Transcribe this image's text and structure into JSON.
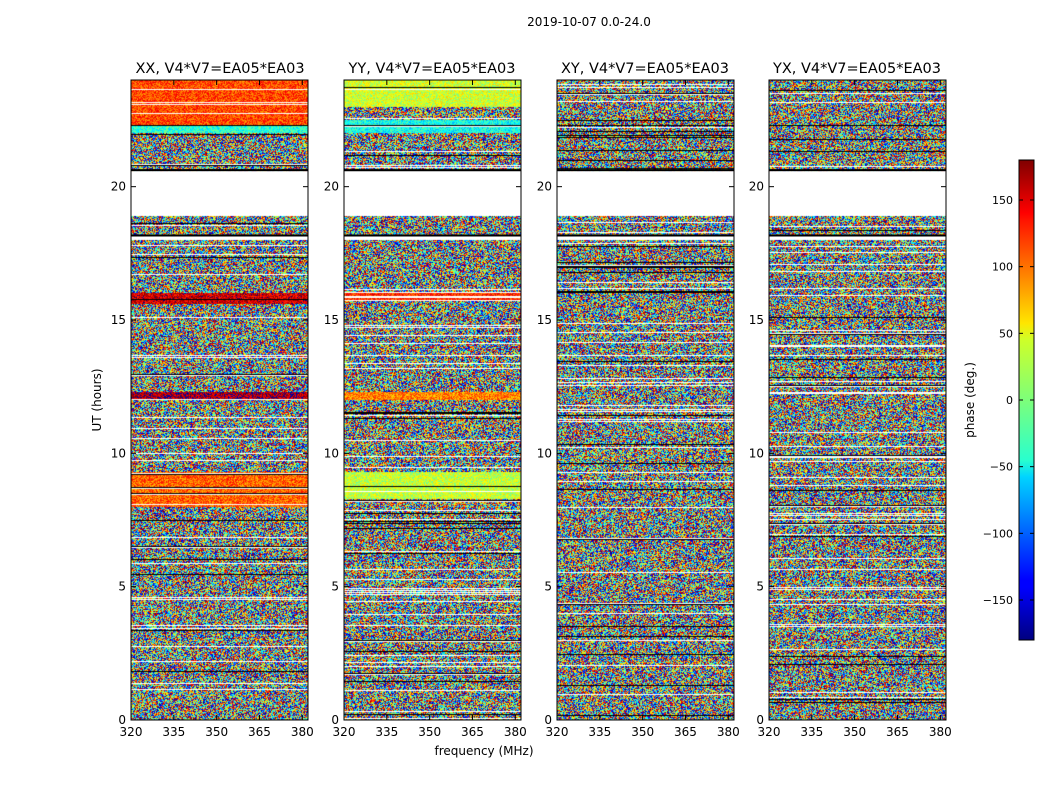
{
  "figure_title": "2019-10-07 0.0-24.0",
  "colors": {
    "frame": "#000000",
    "gap": "#ffffff",
    "flag_line": "#000000"
  },
  "chart_data": [
    {
      "type": "heatmap",
      "title": "XX, V4*V7=EA05*EA03",
      "polarization": "XX",
      "xlabel": "frequency (MHz)",
      "ylabel": "UT (hours)",
      "xlim": [
        320,
        382
      ],
      "ylim": [
        0,
        24
      ],
      "xticks": [
        "320",
        "335",
        "350",
        "365",
        "380"
      ],
      "yticks": [
        "0",
        "5",
        "10",
        "15",
        "20"
      ],
      "coherent_bands_deg": [
        {
          "from": 22.3,
          "to": 24.0,
          "phase": 110
        },
        {
          "from": 22.0,
          "to": 22.3,
          "phase": -30
        },
        {
          "from": 15.6,
          "to": 16.0,
          "phase": 150
        },
        {
          "from": 12.0,
          "to": 12.3,
          "phase": 165
        },
        {
          "from": 8.0,
          "to": 9.3,
          "phase": 100
        }
      ]
    },
    {
      "type": "heatmap",
      "title": "YY, V4*V7=EA05*EA03",
      "polarization": "YY",
      "xlabel": "frequency (MHz)",
      "ylabel": "",
      "xlim": [
        320,
        382
      ],
      "ylim": [
        0,
        24
      ],
      "xticks": [
        "320",
        "335",
        "350",
        "365",
        "380"
      ],
      "yticks": [
        "0",
        "5",
        "10",
        "15",
        "20"
      ],
      "coherent_bands_deg": [
        {
          "from": 23.0,
          "to": 24.0,
          "phase": 30
        },
        {
          "from": 22.0,
          "to": 22.5,
          "phase": -40
        },
        {
          "from": 15.7,
          "to": 16.0,
          "phase": 120
        },
        {
          "from": 12.0,
          "to": 12.3,
          "phase": 90
        },
        {
          "from": 8.3,
          "to": 9.3,
          "phase": 25
        }
      ]
    },
    {
      "type": "heatmap",
      "title": "XY, V4*V7=EA05*EA03",
      "polarization": "XY",
      "xlabel": "",
      "ylabel": "",
      "xlim": [
        320,
        382
      ],
      "ylim": [
        0,
        24
      ],
      "xticks": [
        "320",
        "335",
        "350",
        "365",
        "380"
      ],
      "yticks": [
        "0",
        "5",
        "10",
        "15",
        "20"
      ],
      "coherent_bands_deg": []
    },
    {
      "type": "heatmap",
      "title": "YX, V4*V7=EA05*EA03",
      "polarization": "YX",
      "xlabel": "",
      "ylabel": "",
      "xlim": [
        320,
        382
      ],
      "ylim": [
        0,
        24
      ],
      "xticks": [
        "320",
        "335",
        "350",
        "365",
        "380"
      ],
      "yticks": [
        "0",
        "5",
        "10",
        "15",
        "20"
      ],
      "coherent_bands_deg": []
    }
  ],
  "blank_intervals_hours": [
    [
      18.9,
      20.6
    ],
    [
      18.0,
      18.15
    ]
  ],
  "colorbar": {
    "label": "phase (deg.)",
    "range": [
      -180,
      180
    ],
    "ticks": [
      {
        "value": 150,
        "label": "150"
      },
      {
        "value": 100,
        "label": "100"
      },
      {
        "value": 50,
        "label": "50"
      },
      {
        "value": 0,
        "label": "0"
      },
      {
        "value": -50,
        "label": "−50"
      },
      {
        "value": -100,
        "label": "−100"
      },
      {
        "value": -150,
        "label": "−150"
      }
    ]
  }
}
